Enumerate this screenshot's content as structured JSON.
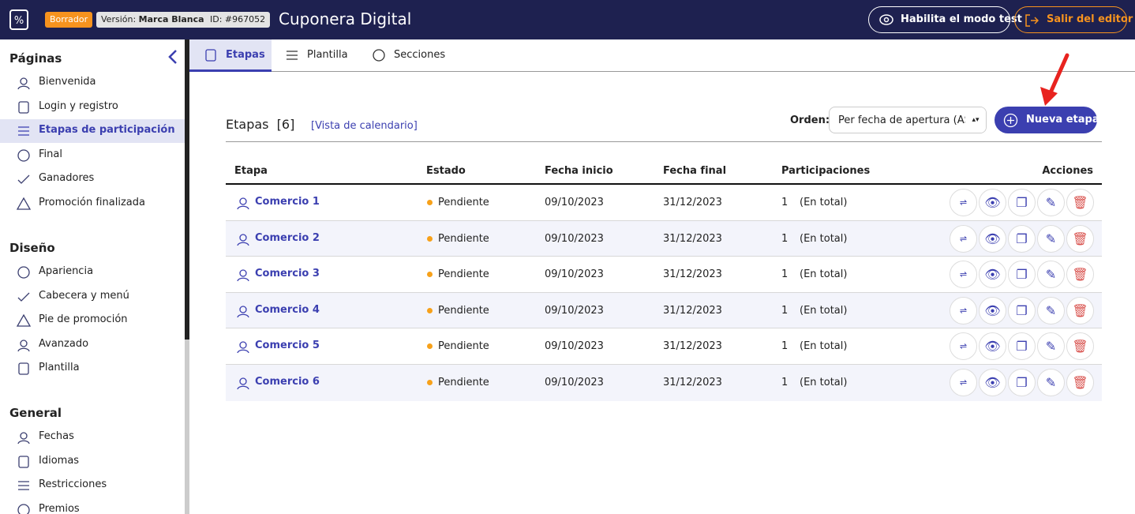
{
  "header": {
    "status": "Borrador",
    "version_label": "Versión:",
    "version_value": "Marca Blanca",
    "id": "ID: #967052",
    "title": "Cuponera Digital",
    "test_button": "Habilita el modo test",
    "exit_button": "Salir del editor"
  },
  "sidebar": {
    "sections": [
      {
        "title": "Páginas",
        "items": [
          {
            "label": "Bienvenida"
          },
          {
            "label": "Login y registro"
          },
          {
            "label": "Etapas de participación",
            "active": true
          },
          {
            "label": "Final"
          },
          {
            "label": "Ganadores"
          },
          {
            "label": "Promoción finalizada"
          }
        ]
      },
      {
        "title": "Diseño",
        "items": [
          {
            "label": "Apariencia"
          },
          {
            "label": "Cabecera y menú"
          },
          {
            "label": "Pie de promoción"
          },
          {
            "label": "Avanzado"
          },
          {
            "label": "Plantilla"
          }
        ]
      },
      {
        "title": "General",
        "items": [
          {
            "label": "Fechas"
          },
          {
            "label": "Idiomas"
          },
          {
            "label": "Restricciones"
          },
          {
            "label": "Premios"
          }
        ]
      }
    ]
  },
  "tabs": [
    {
      "label": "Etapas",
      "active": true
    },
    {
      "label": "Plantilla"
    },
    {
      "label": "Secciones"
    }
  ],
  "content": {
    "heading": "Etapas",
    "count": "[6]",
    "calendar_link": "[Vista de calendario]",
    "order_label": "Orden:",
    "order_select": "Per fecha de apertura (ASC",
    "new_button": "Nueva etapa"
  },
  "table": {
    "columns": [
      "Etapa",
      "Estado",
      "Fecha inicio",
      "Fecha final",
      "Participaciones",
      "Acciones"
    ],
    "rows": [
      [
        "Comercio 1",
        "Pendiente",
        "09/10/2023",
        "31/12/2023",
        1,
        "(En total)"
      ],
      [
        "Comercio 2",
        "Pendiente",
        "09/10/2023",
        "31/12/2023",
        1,
        "(En total)"
      ],
      [
        "Comercio 3",
        "Pendiente",
        "09/10/2023",
        "31/12/2023",
        1,
        "(En total)"
      ],
      [
        "Comercio 4",
        "Pendiente",
        "09/10/2023",
        "31/12/2023",
        1,
        "(En total)"
      ],
      [
        "Comercio 5",
        "Pendiente",
        "09/10/2023",
        "31/12/2023",
        1,
        "(En total)"
      ],
      [
        "Comercio 6",
        "Pendiente",
        "09/10/2023",
        "31/12/2023",
        1,
        "(En total)"
      ]
    ]
  }
}
